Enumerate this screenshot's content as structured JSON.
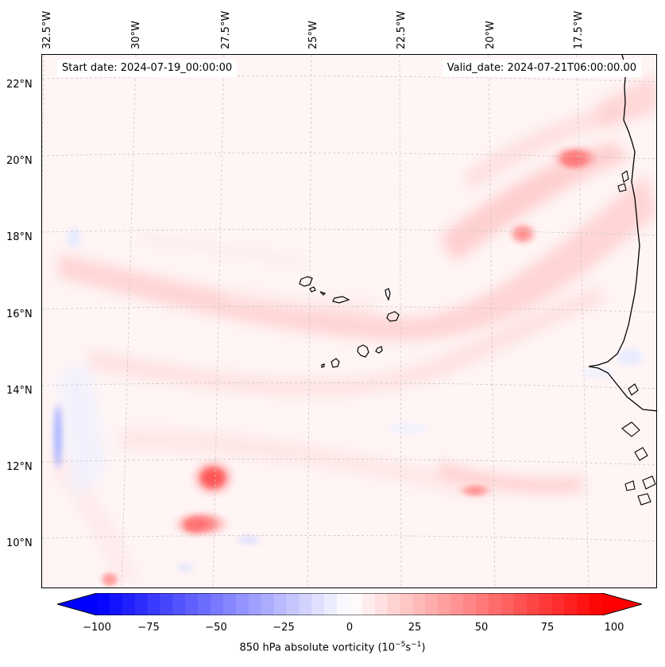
{
  "map": {
    "start_date": "Start date: 2024-07-19_00:00:00",
    "valid_date": "Valid_date: 2024-07-21T06:00:00.00",
    "lon_labels": [
      "32.5°W",
      "30°W",
      "27.5°W",
      "25°W",
      "22.5°W",
      "20°W",
      "17.5°W"
    ],
    "lat_labels": [
      "22°N",
      "20°N",
      "18°N",
      "16°N",
      "14°N",
      "12°N",
      "10°N"
    ],
    "field": "850 hPa absolute vorticity",
    "features": [
      "Cabo Verde islands",
      "West African coastline"
    ]
  },
  "colorbar": {
    "min": -100,
    "max": 100,
    "ticks": [
      "−100",
      "−75",
      "−50",
      "−25",
      "0",
      "25",
      "50",
      "75",
      "100"
    ],
    "label_prefix": "850 hPa absolute vorticity (10",
    "label_exp1": "−5",
    "label_mid": "s",
    "label_exp2": "−1",
    "label_suffix": ")",
    "colors": {
      "negative": "#0000ff",
      "zero": "#ffffff",
      "positive": "#ff0000"
    },
    "extend": "both"
  }
}
